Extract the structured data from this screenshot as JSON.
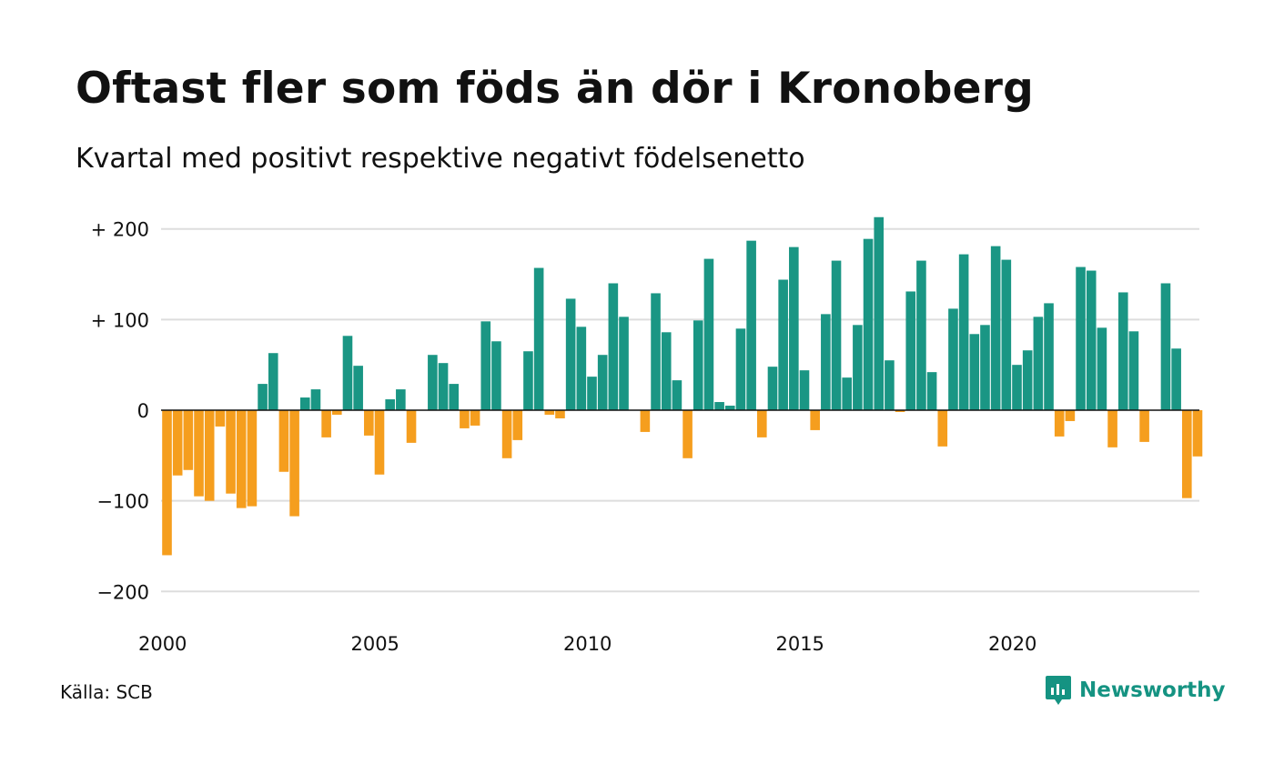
{
  "title": "Oftast fler som föds än dör i Kronoberg",
  "subtitle": "Kvartal med positivt respektive negativt födelsenetto",
  "source": "Källa: SCB",
  "brand": "Newsworthy",
  "colors": {
    "positive": "#1a9684",
    "negative": "#f59e1e",
    "grid": "#dddddd",
    "axis": "#111111",
    "brand": "#159382"
  },
  "chart_data": {
    "type": "bar",
    "grid": true,
    "ylim": [
      -220,
      220
    ],
    "yticks": [
      200,
      100,
      0,
      -100,
      -200
    ],
    "ytick_labels": [
      "+ 200",
      "+ 100",
      "0",
      "−100",
      "−200"
    ],
    "xticks": [
      2000,
      2005,
      2010,
      2015,
      2020
    ],
    "xtick_labels": [
      "2000",
      "2005",
      "2010",
      "2015",
      "2020"
    ],
    "start_year": 2000,
    "values": [
      -160,
      -72,
      -66,
      -95,
      -100,
      -18,
      -92,
      -108,
      -106,
      29,
      63,
      -68,
      -117,
      14,
      23,
      -30,
      -5,
      82,
      49,
      -28,
      -71,
      12,
      23,
      -36,
      0,
      61,
      52,
      29,
      -20,
      -17,
      98,
      76,
      -53,
      -33,
      65,
      157,
      -5,
      -9,
      123,
      92,
      37,
      61,
      140,
      103,
      0,
      -24,
      129,
      86,
      33,
      -53,
      99,
      167,
      9,
      5,
      90,
      187,
      -30,
      48,
      144,
      180,
      44,
      -22,
      106,
      165,
      36,
      94,
      189,
      213,
      55,
      -2,
      131,
      165,
      42,
      -40,
      112,
      172,
      84,
      94,
      181,
      166,
      50,
      66,
      103,
      118,
      -29,
      -12,
      158,
      154,
      91,
      -41,
      130,
      87,
      -35,
      0,
      140,
      68,
      -97,
      -51
    ]
  }
}
